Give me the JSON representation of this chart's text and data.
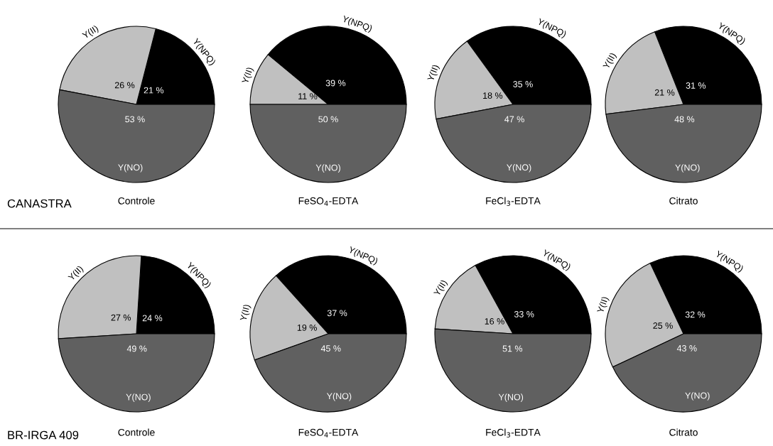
{
  "chart_data": [
    {
      "type": "pie",
      "title": "Controle",
      "categories": [
        "Y(NPQ)",
        "Y(II)",
        "Y(NO)"
      ],
      "values": [
        21,
        26,
        53
      ],
      "colors": [
        "#000000",
        "#c0c0c0",
        "#606060"
      ],
      "value_labels": [
        "21 %",
        "26 %",
        "53 %"
      ],
      "annotations": [
        "CANASTRA"
      ]
    },
    {
      "type": "pie",
      "title": "FeSO$_{4}$-EDTA",
      "categories": [
        "Y(NPQ)",
        "Y(II)",
        "Y(NO)"
      ],
      "values": [
        39,
        11,
        50
      ],
      "colors": [
        "#000000",
        "#c0c0c0",
        "#606060"
      ],
      "value_labels": [
        "39 %",
        "11 %",
        "50 %"
      ]
    },
    {
      "type": "pie",
      "title": "FeCl$_{3}$-EDTA",
      "categories": [
        "Y(NPQ)",
        "Y(II)",
        "Y(NO)"
      ],
      "values": [
        35,
        18,
        47
      ],
      "colors": [
        "#000000",
        "#c0c0c0",
        "#606060"
      ],
      "value_labels": [
        "35 %",
        "18 %",
        "47 %"
      ]
    },
    {
      "type": "pie",
      "title": "Citrato",
      "categories": [
        "Y(NPQ)",
        "Y(II)",
        "Y(NO)"
      ],
      "values": [
        31,
        21,
        48
      ],
      "colors": [
        "#000000",
        "#c0c0c0",
        "#606060"
      ],
      "value_labels": [
        "31 %",
        "21 %",
        "48 %"
      ]
    },
    {
      "type": "pie",
      "title": "Controle",
      "categories": [
        "Y(NPQ)",
        "Y(II)",
        "Y(NO)"
      ],
      "values": [
        24,
        27,
        49
      ],
      "colors": [
        "#000000",
        "#c0c0c0",
        "#606060"
      ],
      "value_labels": [
        "24 %",
        "27 %",
        "49 %"
      ],
      "annotations": [
        "BR-IRGA 409"
      ]
    },
    {
      "type": "pie",
      "title": "FeSO$_{4}$-EDTA",
      "categories": [
        "Y(NPQ)",
        "Y(II)",
        "Y(NO)"
      ],
      "values": [
        37,
        19,
        45
      ],
      "colors": [
        "#000000",
        "#c0c0c0",
        "#606060"
      ],
      "value_labels": [
        "37 %",
        "19 %",
        "45 %"
      ]
    },
    {
      "type": "pie",
      "title": "FeCl$_{3}$-EDTA",
      "categories": [
        "Y(NPQ)",
        "Y(II)",
        "Y(NO)"
      ],
      "values": [
        33,
        16,
        51
      ],
      "colors": [
        "#000000",
        "#c0c0c0",
        "#606060"
      ],
      "value_labels": [
        "33 %",
        "16 %",
        "51 %"
      ]
    },
    {
      "type": "pie",
      "title": "Citrato",
      "categories": [
        "Y(NPQ)",
        "Y(II)",
        "Y(NO)"
      ],
      "values": [
        32,
        25,
        43
      ],
      "colors": [
        "#000000",
        "#c0c0c0",
        "#606060"
      ],
      "value_labels": [
        "32 %",
        "25 %",
        "43 %"
      ]
    }
  ]
}
